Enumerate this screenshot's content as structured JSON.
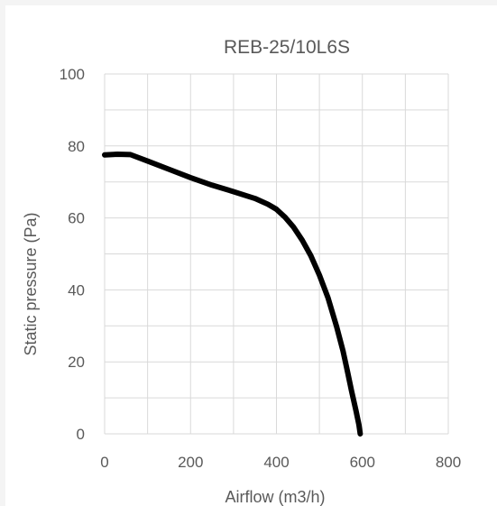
{
  "chart_data": {
    "type": "line",
    "title": "REB-25/10L6S",
    "xlabel": "Airflow (m3/h)",
    "ylabel": "Static pressure (Pa)",
    "xlim": [
      0,
      800
    ],
    "ylim": [
      0,
      100
    ],
    "xticks": [
      0,
      200,
      400,
      600,
      800
    ],
    "yticks": [
      0,
      20,
      40,
      60,
      80,
      100
    ],
    "grid": true,
    "series": [
      {
        "color": "#000000",
        "x": [
          0,
          30,
          60,
          100,
          150,
          200,
          250,
          300,
          350,
          380,
          400,
          420,
          440,
          460,
          480,
          500,
          520,
          540,
          555,
          565,
          575,
          585,
          592,
          595
        ],
        "y": [
          77.5,
          77.7,
          77.6,
          75.8,
          73.5,
          71.2,
          69.1,
          67.3,
          65.4,
          63.8,
          62.4,
          60.2,
          57.4,
          53.8,
          49.5,
          44.1,
          37.8,
          29.8,
          23.0,
          17.5,
          11.8,
          6.5,
          2.5,
          0
        ]
      }
    ]
  }
}
